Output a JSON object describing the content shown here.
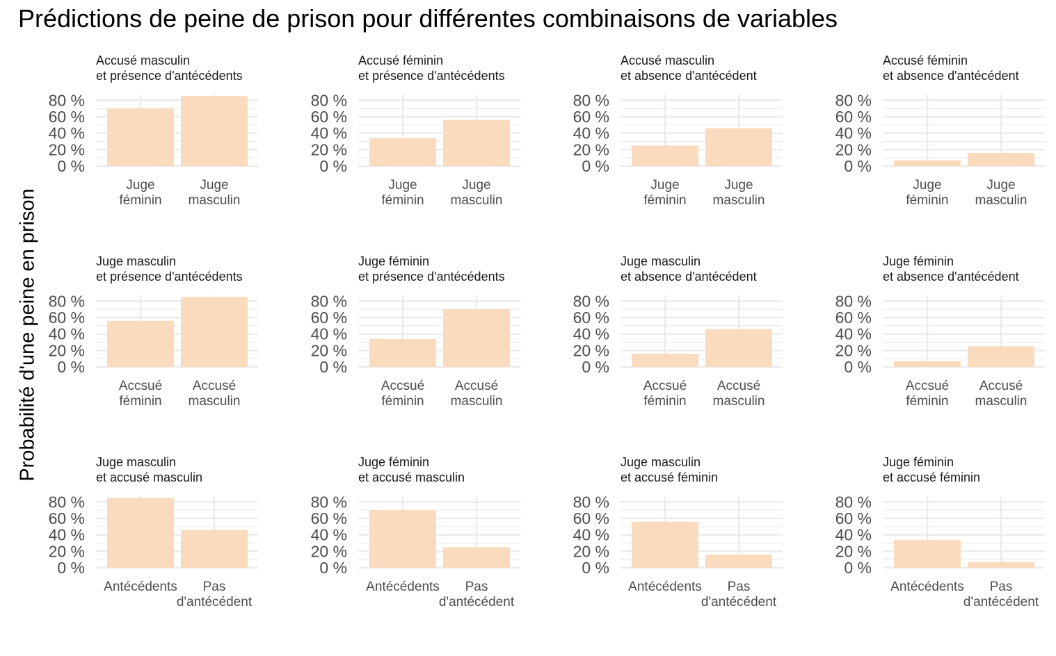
{
  "chart_data": {
    "type": "bar",
    "title": "Prédictions de peine de prison pour différentes combinaisons de variables",
    "ylabel": "Probabilité d'une peine en prison",
    "xlabel": "",
    "ylim": [
      0,
      0.87
    ],
    "y_ticks": [
      0,
      0.2,
      0.4,
      0.6,
      0.8
    ],
    "y_tick_labels": [
      "0 %",
      "20 %",
      "40 %",
      "60 %",
      "80 %"
    ],
    "grid": true,
    "bar_color": "#FADBBE",
    "grid_color": "#EBEBEB",
    "panels": [
      {
        "title": [
          "Accusé masculin",
          "et présence d'antécédents"
        ],
        "categories": [
          [
            "Juge",
            "féminin"
          ],
          [
            "Juge",
            "masculin"
          ]
        ],
        "values": [
          0.7,
          0.85
        ]
      },
      {
        "title": [
          "Accusé féminin",
          "et présence d'antécédents"
        ],
        "categories": [
          [
            "Juge",
            "féminin"
          ],
          [
            "Juge",
            "masculin"
          ]
        ],
        "values": [
          0.34,
          0.56
        ]
      },
      {
        "title": [
          "Accusé masculin",
          "et absence d'antécédent"
        ],
        "categories": [
          [
            "Juge",
            "féminin"
          ],
          [
            "Juge",
            "masculin"
          ]
        ],
        "values": [
          0.25,
          0.46
        ]
      },
      {
        "title": [
          "Accusé féminin",
          "et absence d'antécédent"
        ],
        "categories": [
          [
            "Juge",
            "féminin"
          ],
          [
            "Juge",
            "masculin"
          ]
        ],
        "values": [
          0.07,
          0.16
        ]
      },
      {
        "title": [
          "Juge masculin",
          "et présence d'antécédents"
        ],
        "categories": [
          [
            "Accsué",
            "féminin"
          ],
          [
            "Accusé",
            "masculin"
          ]
        ],
        "values": [
          0.56,
          0.85
        ]
      },
      {
        "title": [
          "Juge féminin",
          "et présence d'antécédents"
        ],
        "categories": [
          [
            "Accsué",
            "féminin"
          ],
          [
            "Accusé",
            "masculin"
          ]
        ],
        "values": [
          0.34,
          0.7
        ]
      },
      {
        "title": [
          "Juge masculin",
          "et absence d'antécédent"
        ],
        "categories": [
          [
            "Accsué",
            "féminin"
          ],
          [
            "Accusé",
            "masculin"
          ]
        ],
        "values": [
          0.16,
          0.46
        ]
      },
      {
        "title": [
          "Juge féminin",
          "et absence d'antécédent"
        ],
        "categories": [
          [
            "Accsué",
            "féminin"
          ],
          [
            "Accusé",
            "masculin"
          ]
        ],
        "values": [
          0.07,
          0.25
        ]
      },
      {
        "title": [
          "Juge masculin",
          "et accusé masculin"
        ],
        "categories": [
          [
            "Antécédents"
          ],
          [
            "Pas",
            "d'antécédent"
          ]
        ],
        "values": [
          0.85,
          0.46
        ]
      },
      {
        "title": [
          "Juge féminin",
          "et accusé masculin"
        ],
        "categories": [
          [
            "Antécédents"
          ],
          [
            "Pas",
            "d'antécédent"
          ]
        ],
        "values": [
          0.7,
          0.25
        ]
      },
      {
        "title": [
          "Juge masculin",
          "et accusé féminin"
        ],
        "categories": [
          [
            "Antécédents"
          ],
          [
            "Pas",
            "d'antécédent"
          ]
        ],
        "values": [
          0.56,
          0.16
        ]
      },
      {
        "title": [
          "Juge féminin",
          "et accusé féminin"
        ],
        "categories": [
          [
            "Antécédents"
          ],
          [
            "Pas",
            "d'antécédent"
          ]
        ],
        "values": [
          0.34,
          0.07
        ]
      }
    ]
  }
}
